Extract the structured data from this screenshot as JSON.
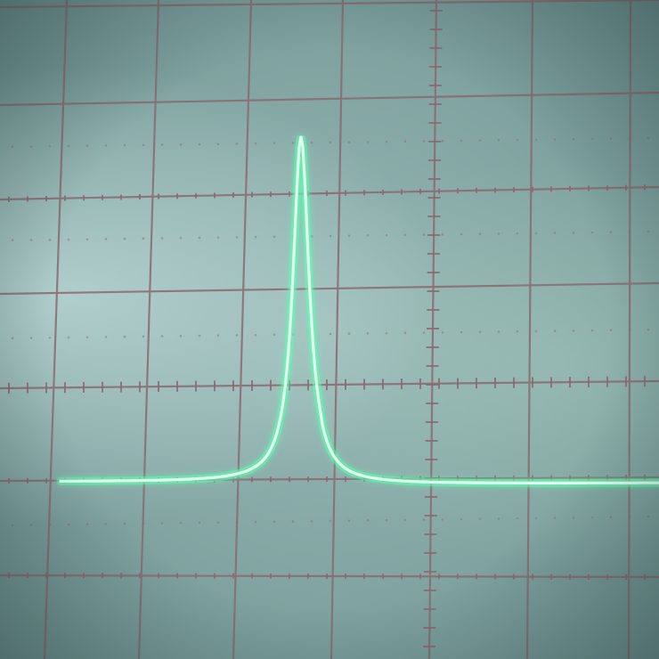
{
  "scene": {
    "subject": "oscilloscope-screen",
    "colors": {
      "screen": "#8fb1ae",
      "graticule": "#8a6a72",
      "trace": "#7dffc6",
      "trace_core": "#e8fff4"
    }
  }
}
